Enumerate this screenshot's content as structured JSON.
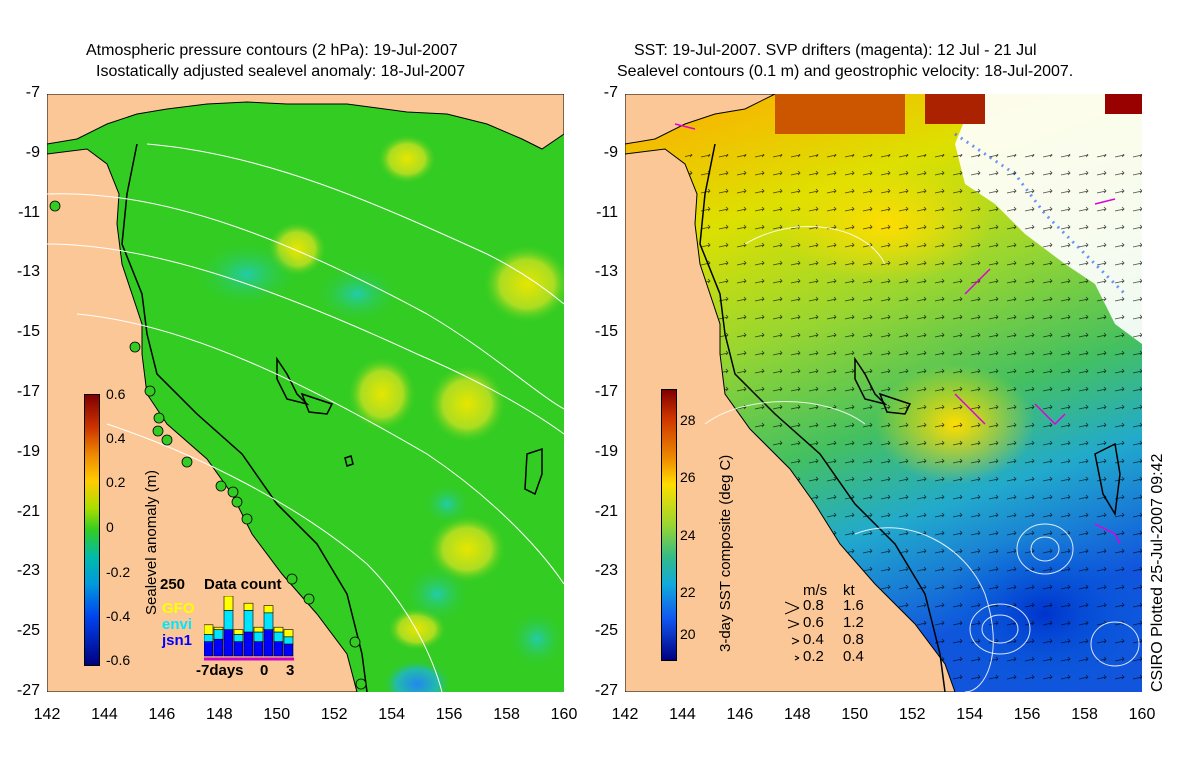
{
  "left_panel": {
    "title_line1": "Atmospheric pressure contours (2 hPa): 19-Jul-2007",
    "title_line2": "Isostatically adjusted sealevel anomaly: 18-Jul-2007",
    "colorbar": {
      "title": "Sealevel anomaly (m)",
      "ticks": [
        "0.6",
        "0.4",
        "0.2",
        "0",
        "-0.2",
        "-0.4",
        "-0.6"
      ]
    },
    "inset": {
      "title": "Data count",
      "ymax_label": "250",
      "series_labels": [
        "GFO",
        "envi",
        "jsn1"
      ],
      "series_colors": [
        "#ffff00",
        "#00e5ff",
        "#0000ff"
      ],
      "x_labels": [
        "-7days",
        "0",
        "3"
      ],
      "bars": [
        {
          "gfo": 40,
          "envi": 30,
          "jsn1": 60
        },
        {
          "gfo": 10,
          "envi": 40,
          "jsn1": 70
        },
        {
          "gfo": 60,
          "envi": 80,
          "jsn1": 110
        },
        {
          "gfo": 20,
          "envi": 30,
          "jsn1": 60
        },
        {
          "gfo": 30,
          "envi": 90,
          "jsn1": 100
        },
        {
          "gfo": 20,
          "envi": 40,
          "jsn1": 60
        },
        {
          "gfo": 30,
          "envi": 70,
          "jsn1": 110
        },
        {
          "gfo": 20,
          "envi": 40,
          "jsn1": 60
        },
        {
          "gfo": 30,
          "envi": 30,
          "jsn1": 50
        }
      ]
    }
  },
  "right_panel": {
    "title_line1": "SST: 19-Jul-2007. SVP drifters (magenta): 12 Jul - 21 Jul",
    "title_line2": "Sealevel contours (0.1 m) and geostrophic velocity: 18-Jul-2007.",
    "colorbar": {
      "title": "3-day SST composite (deg C)",
      "ticks": [
        "28",
        "26",
        "24",
        "22",
        "20"
      ]
    },
    "speed_legend": {
      "header_ms": "m/s",
      "header_kt": "kt",
      "rows": [
        {
          "ms": "0.8",
          "kt": "1.6"
        },
        {
          "ms": "0.6",
          "kt": "1.2"
        },
        {
          "ms": "0.4",
          "kt": "0.8"
        },
        {
          "ms": "0.2",
          "kt": "0.4"
        }
      ]
    }
  },
  "axes": {
    "y_ticks": [
      "-7",
      "-9",
      "-11",
      "-13",
      "-15",
      "-17",
      "-19",
      "-21",
      "-23",
      "-25",
      "-27"
    ],
    "x_ticks": [
      "142",
      "144",
      "146",
      "148",
      "150",
      "152",
      "154",
      "156",
      "158",
      "160"
    ]
  },
  "credit": "CSIRO Plotted 25-Jul-2007 09:42",
  "colors": {
    "land": "#fcc796",
    "ocean_sla": "#33cc22",
    "sst_mid": "#a8d630",
    "coast": "#000000",
    "contour": "#ffffff",
    "drifter": "#dd00dd"
  }
}
